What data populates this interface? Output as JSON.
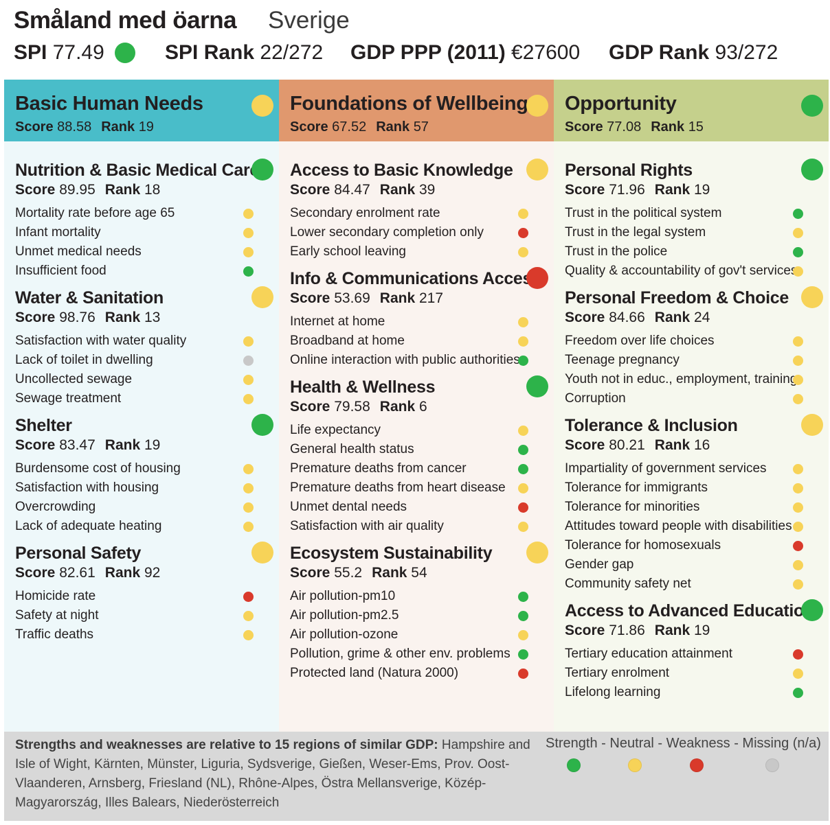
{
  "header": {
    "region": "Småland med öarna",
    "country": "Sverige",
    "spi_label": "SPI",
    "spi_value": "77.49",
    "spi_status": "strength",
    "spi_rank_label": "SPI Rank",
    "spi_rank_value": "22/272",
    "gdp_label": "GDP PPP (2011)",
    "gdp_value": "€27600",
    "gdp_rank_label": "GDP Rank",
    "gdp_rank_value": "93/272"
  },
  "colors": {
    "strength": "#2db34a",
    "neutral": "#f7d358",
    "weakness": "#d93a2b",
    "missing": "#c8c8c8",
    "basic_head": "#49bdc9",
    "basic_body": "#eef8fa",
    "found_head": "#e0986e",
    "found_body": "#faf3ef",
    "opp_head": "#c5d08c",
    "opp_body": "#f6f8ee"
  },
  "labels": {
    "score": "Score",
    "rank": "Rank"
  },
  "dimensions": [
    {
      "title": "Basic Human Needs",
      "score": "88.58",
      "rank": "19",
      "status": "neutral",
      "components": [
        {
          "title": "Nutrition & Basic Medical Care",
          "score": "89.95",
          "rank": "18",
          "status": "strength",
          "indicators": [
            {
              "label": "Mortality rate before age 65",
              "status": "neutral"
            },
            {
              "label": "Infant mortality",
              "status": "neutral"
            },
            {
              "label": "Unmet medical needs",
              "status": "neutral"
            },
            {
              "label": "Insufficient food",
              "status": "strength"
            }
          ]
        },
        {
          "title": "Water & Sanitation",
          "score": "98.76",
          "rank": "13",
          "status": "neutral",
          "indicators": [
            {
              "label": "Satisfaction with water quality",
              "status": "neutral"
            },
            {
              "label": "Lack of toilet in dwelling",
              "status": "missing"
            },
            {
              "label": "Uncollected sewage",
              "status": "neutral"
            },
            {
              "label": "Sewage treatment",
              "status": "neutral"
            }
          ]
        },
        {
          "title": "Shelter",
          "score": "83.47",
          "rank": "19",
          "status": "strength",
          "indicators": [
            {
              "label": "Burdensome cost of housing",
              "status": "neutral"
            },
            {
              "label": "Satisfaction with housing",
              "status": "neutral"
            },
            {
              "label": "Overcrowding",
              "status": "neutral"
            },
            {
              "label": "Lack of adequate heating",
              "status": "neutral"
            }
          ]
        },
        {
          "title": "Personal Safety",
          "score": "82.61",
          "rank": "92",
          "status": "neutral",
          "indicators": [
            {
              "label": "Homicide rate",
              "status": "weakness"
            },
            {
              "label": "Safety at night",
              "status": "neutral"
            },
            {
              "label": "Traffic deaths",
              "status": "neutral"
            }
          ]
        }
      ]
    },
    {
      "title": "Foundations of Wellbeing",
      "score": "67.52",
      "rank": "57",
      "status": "neutral",
      "components": [
        {
          "title": "Access to Basic Knowledge",
          "score": "84.47",
          "rank": "39",
          "status": "neutral",
          "indicators": [
            {
              "label": "Secondary enrolment rate",
              "status": "neutral"
            },
            {
              "label": "Lower secondary completion only",
              "status": "weakness"
            },
            {
              "label": "Early school leaving",
              "status": "neutral"
            }
          ]
        },
        {
          "title": "Info & Communications Access",
          "score": "53.69",
          "rank": "217",
          "status": "weakness",
          "indicators": [
            {
              "label": "Internet at home",
              "status": "neutral"
            },
            {
              "label": "Broadband at home",
              "status": "neutral"
            },
            {
              "label": "Online interaction with public authorities",
              "status": "strength"
            }
          ]
        },
        {
          "title": "Health & Wellness",
          "score": "79.58",
          "rank": "6",
          "status": "strength",
          "indicators": [
            {
              "label": "Life expectancy",
              "status": "neutral"
            },
            {
              "label": "General health status",
              "status": "strength"
            },
            {
              "label": "Premature deaths from cancer",
              "status": "strength"
            },
            {
              "label": "Premature deaths from heart disease",
              "status": "neutral"
            },
            {
              "label": "Unmet dental needs",
              "status": "weakness"
            },
            {
              "label": "Satisfaction with air quality",
              "status": "neutral"
            }
          ]
        },
        {
          "title": "Ecosystem Sustainability",
          "score": "55.2",
          "rank": "54",
          "status": "neutral",
          "indicators": [
            {
              "label": "Air pollution-pm10",
              "status": "strength"
            },
            {
              "label": "Air pollution-pm2.5",
              "status": "strength"
            },
            {
              "label": "Air pollution-ozone",
              "status": "neutral"
            },
            {
              "label": "Pollution, grime & other env. problems",
              "status": "strength"
            },
            {
              "label": "Protected land (Natura 2000)",
              "status": "weakness"
            }
          ]
        }
      ]
    },
    {
      "title": "Opportunity",
      "score": "77.08",
      "rank": "15",
      "status": "strength",
      "components": [
        {
          "title": "Personal Rights",
          "score": "71.96",
          "rank": "19",
          "status": "strength",
          "indicators": [
            {
              "label": "Trust in the political system",
              "status": "strength"
            },
            {
              "label": "Trust in the legal system",
              "status": "neutral"
            },
            {
              "label": "Trust in the police",
              "status": "strength"
            },
            {
              "label": "Quality & accountability of gov't services",
              "status": "neutral"
            }
          ]
        },
        {
          "title": "Personal Freedom & Choice",
          "score": "84.66",
          "rank": "24",
          "status": "neutral",
          "indicators": [
            {
              "label": "Freedom over life choices",
              "status": "neutral"
            },
            {
              "label": "Teenage pregnancy",
              "status": "neutral"
            },
            {
              "label": "Youth not in educ., employment, training",
              "status": "neutral"
            },
            {
              "label": "Corruption",
              "status": "neutral"
            }
          ]
        },
        {
          "title": "Tolerance & Inclusion",
          "score": "80.21",
          "rank": "16",
          "status": "neutral",
          "indicators": [
            {
              "label": "Impartiality of government services",
              "status": "neutral"
            },
            {
              "label": "Tolerance for immigrants",
              "status": "neutral"
            },
            {
              "label": "Tolerance for minorities",
              "status": "neutral"
            },
            {
              "label": "Attitudes toward people with disabilities",
              "status": "neutral"
            },
            {
              "label": "Tolerance for homosexuals",
              "status": "weakness"
            },
            {
              "label": "Gender gap",
              "status": "neutral"
            },
            {
              "label": "Community safety net",
              "status": "neutral"
            }
          ]
        },
        {
          "title": "Access to Advanced Education",
          "score": "71.86",
          "rank": "19",
          "status": "strength",
          "indicators": [
            {
              "label": "Tertiary education attainment",
              "status": "weakness"
            },
            {
              "label": "Tertiary enrolment",
              "status": "neutral"
            },
            {
              "label": "Lifelong learning",
              "status": "strength"
            }
          ]
        }
      ]
    }
  ],
  "footer": {
    "note_bold": "Strengths and weaknesses are relative to 15 regions of similar GDP:",
    "note": " Hampshire and Isle of Wight, Kärnten, Münster, Liguria, Sydsverige, Gießen, Weser-Ems, Prov. Oost-Vlaanderen, Arnsberg, Friesland (NL), Rhône-Alpes, Östra Mellansverige, Közép-Magyarország, Illes Balears, Niederösterreich",
    "legend_text": "Strength - Neutral - Weakness - Missing (n/a)",
    "legend": [
      "strength",
      "neutral",
      "weakness",
      "missing"
    ]
  }
}
